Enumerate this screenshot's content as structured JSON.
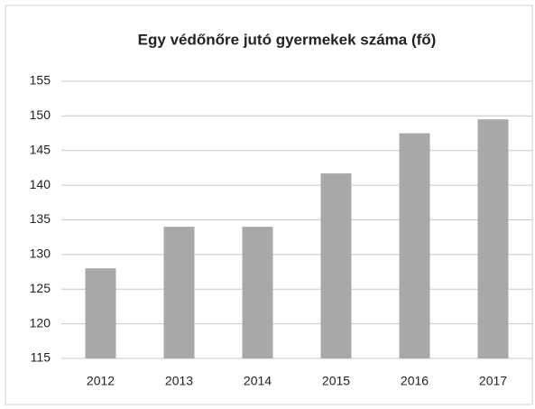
{
  "chart_data": {
    "type": "bar",
    "title": "Egy védőnőre jutó gyermekek száma (fő)",
    "categories": [
      "2012",
      "2013",
      "2014",
      "2015",
      "2016",
      "2017"
    ],
    "values": [
      128,
      134,
      134,
      141.7,
      147.5,
      149.5
    ],
    "color": "#a8a8a8",
    "ylim": [
      115,
      155
    ],
    "yticks": [
      115,
      120,
      125,
      130,
      135,
      140,
      145,
      150,
      155
    ],
    "grid": true
  }
}
